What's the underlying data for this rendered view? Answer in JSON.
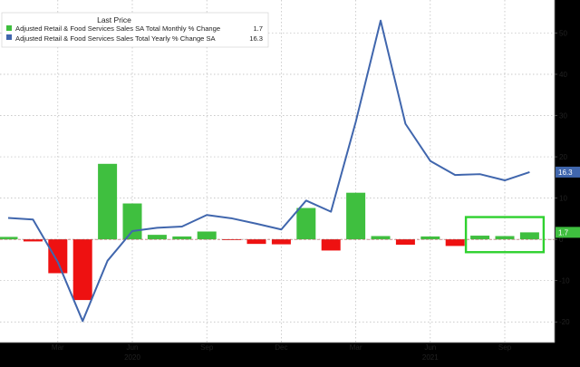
{
  "colors": {
    "background": "#000000",
    "plot_background": "#ffffff",
    "grid": "#b9b9b9",
    "bar_positive": "#3fbf3f",
    "bar_negative": "#ee1111",
    "line": "#4066ad",
    "highlight_box": "#2fd12f",
    "text": "#222222",
    "legend_background": "#ffffff"
  },
  "chart_data": {
    "type": "bar",
    "legend_placement": "top-left",
    "legend_title": "Last Price",
    "grid": true,
    "ylim": [
      -25,
      58
    ],
    "y_ticks": [
      -20,
      -10,
      0,
      10,
      20,
      30,
      40,
      50
    ],
    "y_tick_labels": [
      "-20",
      "-10",
      "0",
      "10",
      "20",
      "30",
      "40",
      "50"
    ],
    "x_ticks": [
      {
        "month": 3,
        "label": "Mar"
      },
      {
        "month": 6,
        "label": "Jun"
      },
      {
        "month": 9,
        "label": "Sep"
      },
      {
        "month": 12,
        "label": "Dec"
      },
      {
        "month": 15,
        "label": "Mar"
      },
      {
        "month": 18,
        "label": "Jun"
      },
      {
        "month": 21,
        "label": "Sep"
      }
    ],
    "year_labels": [
      {
        "month": 6,
        "label": "2020"
      },
      {
        "month": 18,
        "label": "2021"
      }
    ],
    "months": [
      "Jan 2020",
      "Feb 2020",
      "Mar 2020",
      "Apr 2020",
      "May 2020",
      "Jun 2020",
      "Jul 2020",
      "Aug 2020",
      "Sep 2020",
      "Oct 2020",
      "Nov 2020",
      "Dec 2020",
      "Jan 2021",
      "Feb 2021",
      "Mar 2021",
      "Apr 2021",
      "May 2021",
      "Jun 2021",
      "Jul 2021",
      "Aug 2021",
      "Sep 2021",
      "Oct 2021"
    ],
    "series": [
      {
        "name": "Adjusted Retail & Food Services Sales SA Total Monthly % Change",
        "kind": "bar",
        "last_value": "1.7",
        "values": [
          0.6,
          -0.5,
          -8.2,
          -14.7,
          18.3,
          8.7,
          1.1,
          0.7,
          1.9,
          -0.1,
          -1.1,
          -1.2,
          7.6,
          -2.7,
          11.3,
          0.8,
          -1.3,
          0.7,
          -1.6,
          0.9,
          0.8,
          1.7
        ]
      },
      {
        "name": "Adjusted Retail & Food Services Sales Total Yearly % Change SA",
        "kind": "line",
        "last_value": "16.3",
        "values": [
          5.2,
          4.8,
          -5.5,
          -19.8,
          -5.2,
          2.0,
          2.8,
          3.1,
          5.9,
          5.1,
          3.8,
          2.4,
          9.4,
          6.7,
          28.5,
          53.0,
          28.0,
          19.0,
          15.6,
          15.8,
          14.3,
          16.3
        ]
      }
    ],
    "highlight_months": [
      19,
      21
    ]
  }
}
